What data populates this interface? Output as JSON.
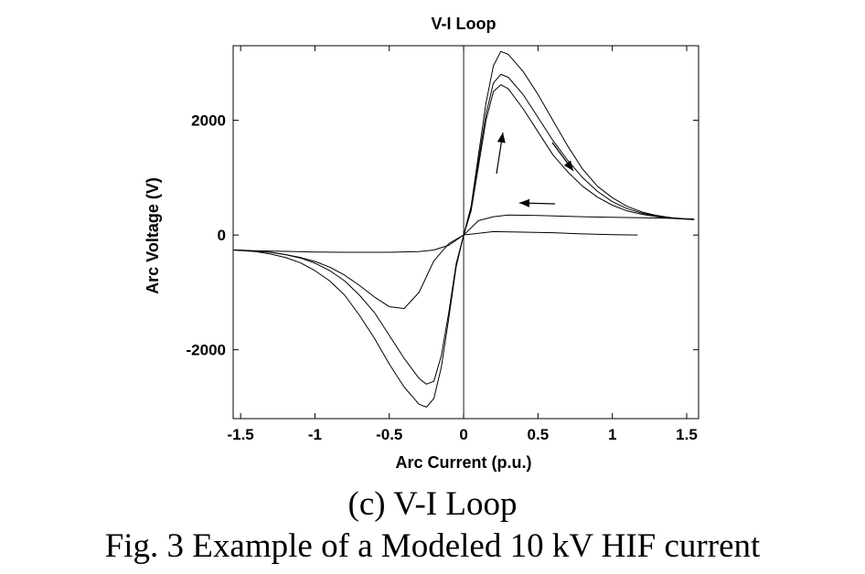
{
  "chart_data": {
    "type": "line",
    "title": "V-I Loop",
    "xlabel": "Arc Current (p.u.)",
    "ylabel": "Arc Voltage (V)",
    "xlim": [
      -1.55,
      1.58
    ],
    "ylim": [
      -3200,
      3300
    ],
    "xticks": [
      -1.5,
      -1,
      -0.5,
      0,
      0.5,
      1,
      1.5
    ],
    "xtick_labels": [
      "-1.5",
      "-1",
      "-0.5",
      "0",
      "0.5",
      "1",
      "1.5"
    ],
    "yticks": [
      -2000,
      0,
      2000
    ],
    "ytick_labels": [
      "-2000",
      "0",
      "2000"
    ],
    "grid": false,
    "line_color": "#000000",
    "series": [
      {
        "x": [
          0,
          0.05,
          0.1,
          0.15,
          0.2,
          0.25,
          0.3,
          0.4,
          0.5,
          0.6,
          0.7,
          0.8,
          0.9,
          1.0,
          1.1,
          1.2,
          1.3,
          1.4,
          1.5,
          1.55
        ],
        "y": [
          0,
          500,
          1400,
          2300,
          2950,
          3200,
          3150,
          2850,
          2450,
          2000,
          1550,
          1150,
          850,
          650,
          500,
          400,
          340,
          300,
          280,
          270
        ]
      },
      {
        "x": [
          0,
          0.05,
          0.1,
          0.15,
          0.2,
          0.25,
          0.3,
          0.4,
          0.5,
          0.6,
          0.7,
          0.8,
          0.9,
          1.0,
          1.1,
          1.2,
          1.3,
          1.4,
          1.5,
          1.55
        ],
        "y": [
          0,
          450,
          1300,
          2100,
          2650,
          2800,
          2750,
          2450,
          2050,
          1650,
          1300,
          1000,
          760,
          580,
          460,
          380,
          330,
          300,
          280,
          270
        ]
      },
      {
        "x": [
          0,
          0.05,
          0.1,
          0.15,
          0.2,
          0.25,
          0.3,
          0.4,
          0.5,
          0.6,
          0.7,
          0.8,
          0.9,
          1.0,
          1.1,
          1.2,
          1.3,
          1.4,
          1.5,
          1.55
        ],
        "y": [
          0,
          420,
          1200,
          2000,
          2500,
          2620,
          2550,
          2200,
          1800,
          1400,
          1100,
          850,
          660,
          520,
          420,
          360,
          320,
          290,
          275,
          270
        ]
      },
      {
        "x": [
          0,
          0.1,
          0.2,
          0.3,
          0.5,
          0.8,
          1.0,
          1.2,
          1.4,
          1.55
        ],
        "y": [
          0,
          250,
          320,
          350,
          340,
          320,
          310,
          300,
          290,
          280
        ]
      },
      {
        "x": [
          0,
          0.2,
          0.4,
          0.6,
          0.8,
          1.0,
          1.17
        ],
        "y": [
          0,
          60,
          50,
          40,
          20,
          5,
          0
        ]
      },
      {
        "x": [
          0,
          -0.05,
          -0.1,
          -0.15,
          -0.2,
          -0.25,
          -0.3,
          -0.4,
          -0.5,
          -0.6,
          -0.7,
          -0.8,
          -0.9,
          -1.0,
          -1.1,
          -1.2,
          -1.3,
          -1.4,
          -1.5,
          -1.55
        ],
        "y": [
          0,
          -550,
          -1450,
          -2300,
          -2850,
          -3000,
          -2950,
          -2650,
          -2250,
          -1800,
          -1400,
          -1050,
          -800,
          -620,
          -480,
          -390,
          -330,
          -290,
          -270,
          -260
        ]
      },
      {
        "x": [
          0,
          -0.05,
          -0.1,
          -0.15,
          -0.2,
          -0.25,
          -0.3,
          -0.4,
          -0.5,
          -0.6,
          -0.7,
          -0.8,
          -0.9,
          -1.0,
          -1.1,
          -1.2,
          -1.3,
          -1.4,
          -1.5,
          -1.55
        ],
        "y": [
          0,
          -500,
          -1350,
          -2100,
          -2550,
          -2600,
          -2500,
          -2150,
          -1750,
          -1350,
          -1050,
          -800,
          -620,
          -490,
          -400,
          -340,
          -300,
          -280,
          -265,
          -260
        ]
      },
      {
        "x": [
          0,
          -0.1,
          -0.2,
          -0.3,
          -0.4,
          -0.5,
          -0.6,
          -0.7,
          -0.8,
          -0.9,
          -1.0,
          -1.1,
          -1.2,
          -1.3,
          -1.4,
          -1.5,
          -1.55
        ],
        "y": [
          0,
          -150,
          -450,
          -1000,
          -1280,
          -1250,
          -1080,
          -880,
          -700,
          -560,
          -460,
          -390,
          -340,
          -300,
          -280,
          -265,
          -260
        ]
      },
      {
        "x": [
          0,
          -0.1,
          -0.2,
          -0.3,
          -0.5,
          -0.8,
          -1.0,
          -1.2,
          -1.4,
          -1.55
        ],
        "y": [
          0,
          -180,
          -260,
          -290,
          -300,
          -300,
          -295,
          -285,
          -275,
          -260
        ]
      }
    ]
  },
  "captions": {
    "subcaption": "(c) V-I Loop",
    "figure": "Fig. 3 Example of a Modeled 10 kV HIF current"
  }
}
